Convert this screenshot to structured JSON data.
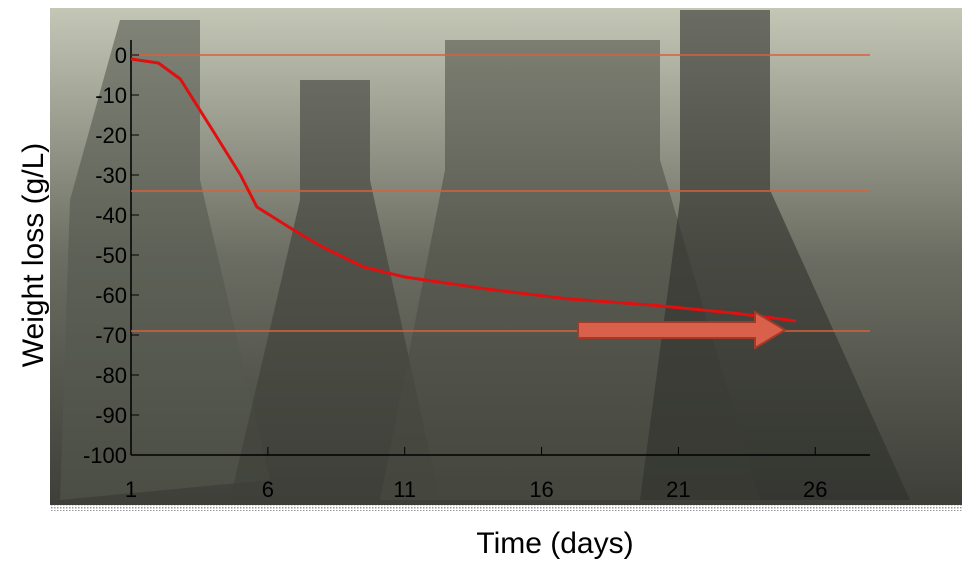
{
  "chart_data": {
    "type": "line",
    "y_label": "Weight loss (g/L)",
    "x_label": "Time (days)",
    "x": [
      1,
      2,
      2.8,
      4,
      5,
      5.6,
      7,
      8,
      9.5,
      11,
      14,
      17,
      20,
      23,
      25.3
    ],
    "values": [
      -1,
      -2,
      -6,
      -19,
      -30,
      -38,
      -44,
      -48,
      -53,
      -55.5,
      -58.5,
      -61,
      -62.5,
      -64.5,
      -66.5
    ],
    "color": "#e01010",
    "xlim": [
      1,
      28
    ],
    "xticks": [
      1,
      6,
      11,
      16,
      21,
      26
    ],
    "ylim": [
      -100,
      0
    ],
    "yticks": [
      0,
      -10,
      -20,
      -30,
      -40,
      -50,
      -60,
      -70,
      -80,
      -90,
      -100
    ],
    "reference_lines": [
      0,
      -34,
      -69
    ],
    "reference_color": "#d9603b"
  }
}
